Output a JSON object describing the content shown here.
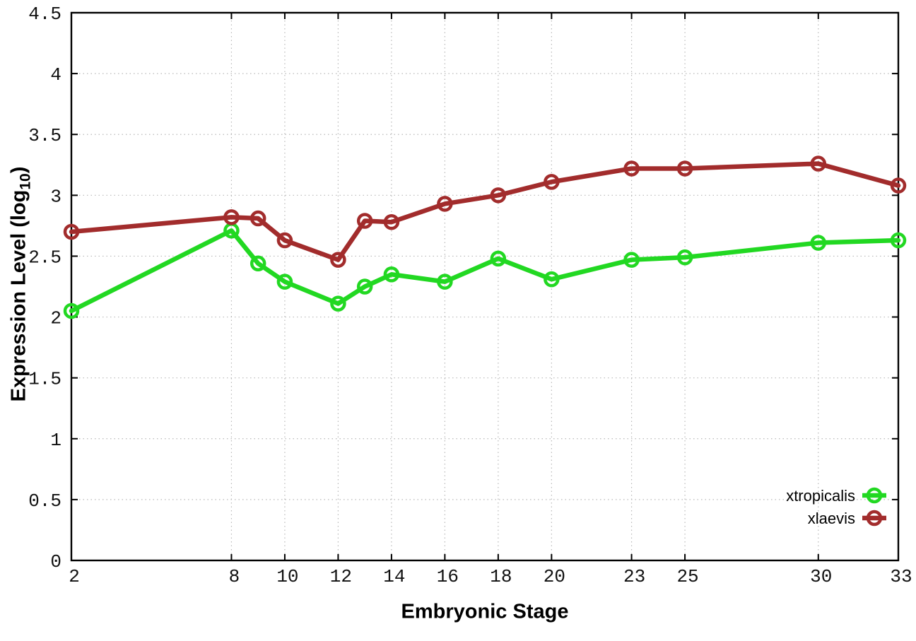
{
  "figure": {
    "background": "#ffffff",
    "border_color": "#000000",
    "grid_color": "#b8b8b8",
    "tick_label_color": "#111111",
    "legend_text_color": "#000000"
  },
  "chart_data": {
    "type": "line",
    "title": "",
    "xlabel": "Embryonic Stage",
    "ylabel": "Expression Level (log10)",
    "ylabel_parts": {
      "pre": "Expression Level (log",
      "sub": "10",
      "post": ")"
    },
    "x": [
      2,
      8,
      9,
      10,
      12,
      13,
      14,
      16,
      18,
      20,
      23,
      25,
      30,
      33
    ],
    "xlim": [
      2,
      33
    ],
    "ylim": [
      0,
      4.5
    ],
    "x_ticks": [
      2,
      8,
      10,
      12,
      14,
      16,
      18,
      20,
      23,
      25,
      30,
      33
    ],
    "x_tick_labels": [
      "2",
      "8",
      "10",
      "12",
      "14",
      "16",
      "18",
      "20",
      "23",
      "25",
      "30",
      "33"
    ],
    "y_ticks": [
      0,
      0.5,
      1,
      1.5,
      2,
      2.5,
      3,
      3.5,
      4,
      4.5
    ],
    "y_tick_labels": [
      "0",
      "0.5",
      "1",
      "1.5",
      "2",
      "2.5",
      "3",
      "3.5",
      "4",
      "4.5"
    ],
    "grid": true,
    "grid_style": "dotted",
    "legend_position": "bottom-right-inside",
    "marker": "open-circle",
    "series": [
      {
        "name": "xtropicalis",
        "color": "#22d822",
        "values": [
          2.05,
          2.71,
          2.44,
          2.29,
          2.11,
          2.25,
          2.35,
          2.29,
          2.48,
          2.31,
          2.47,
          2.49,
          2.61,
          2.63
        ]
      },
      {
        "name": "xlaevis",
        "color": "#a22c2c",
        "values": [
          2.7,
          2.82,
          2.81,
          2.63,
          2.47,
          2.79,
          2.78,
          2.93,
          3.0,
          3.11,
          3.22,
          3.22,
          3.26,
          3.08
        ]
      }
    ]
  }
}
